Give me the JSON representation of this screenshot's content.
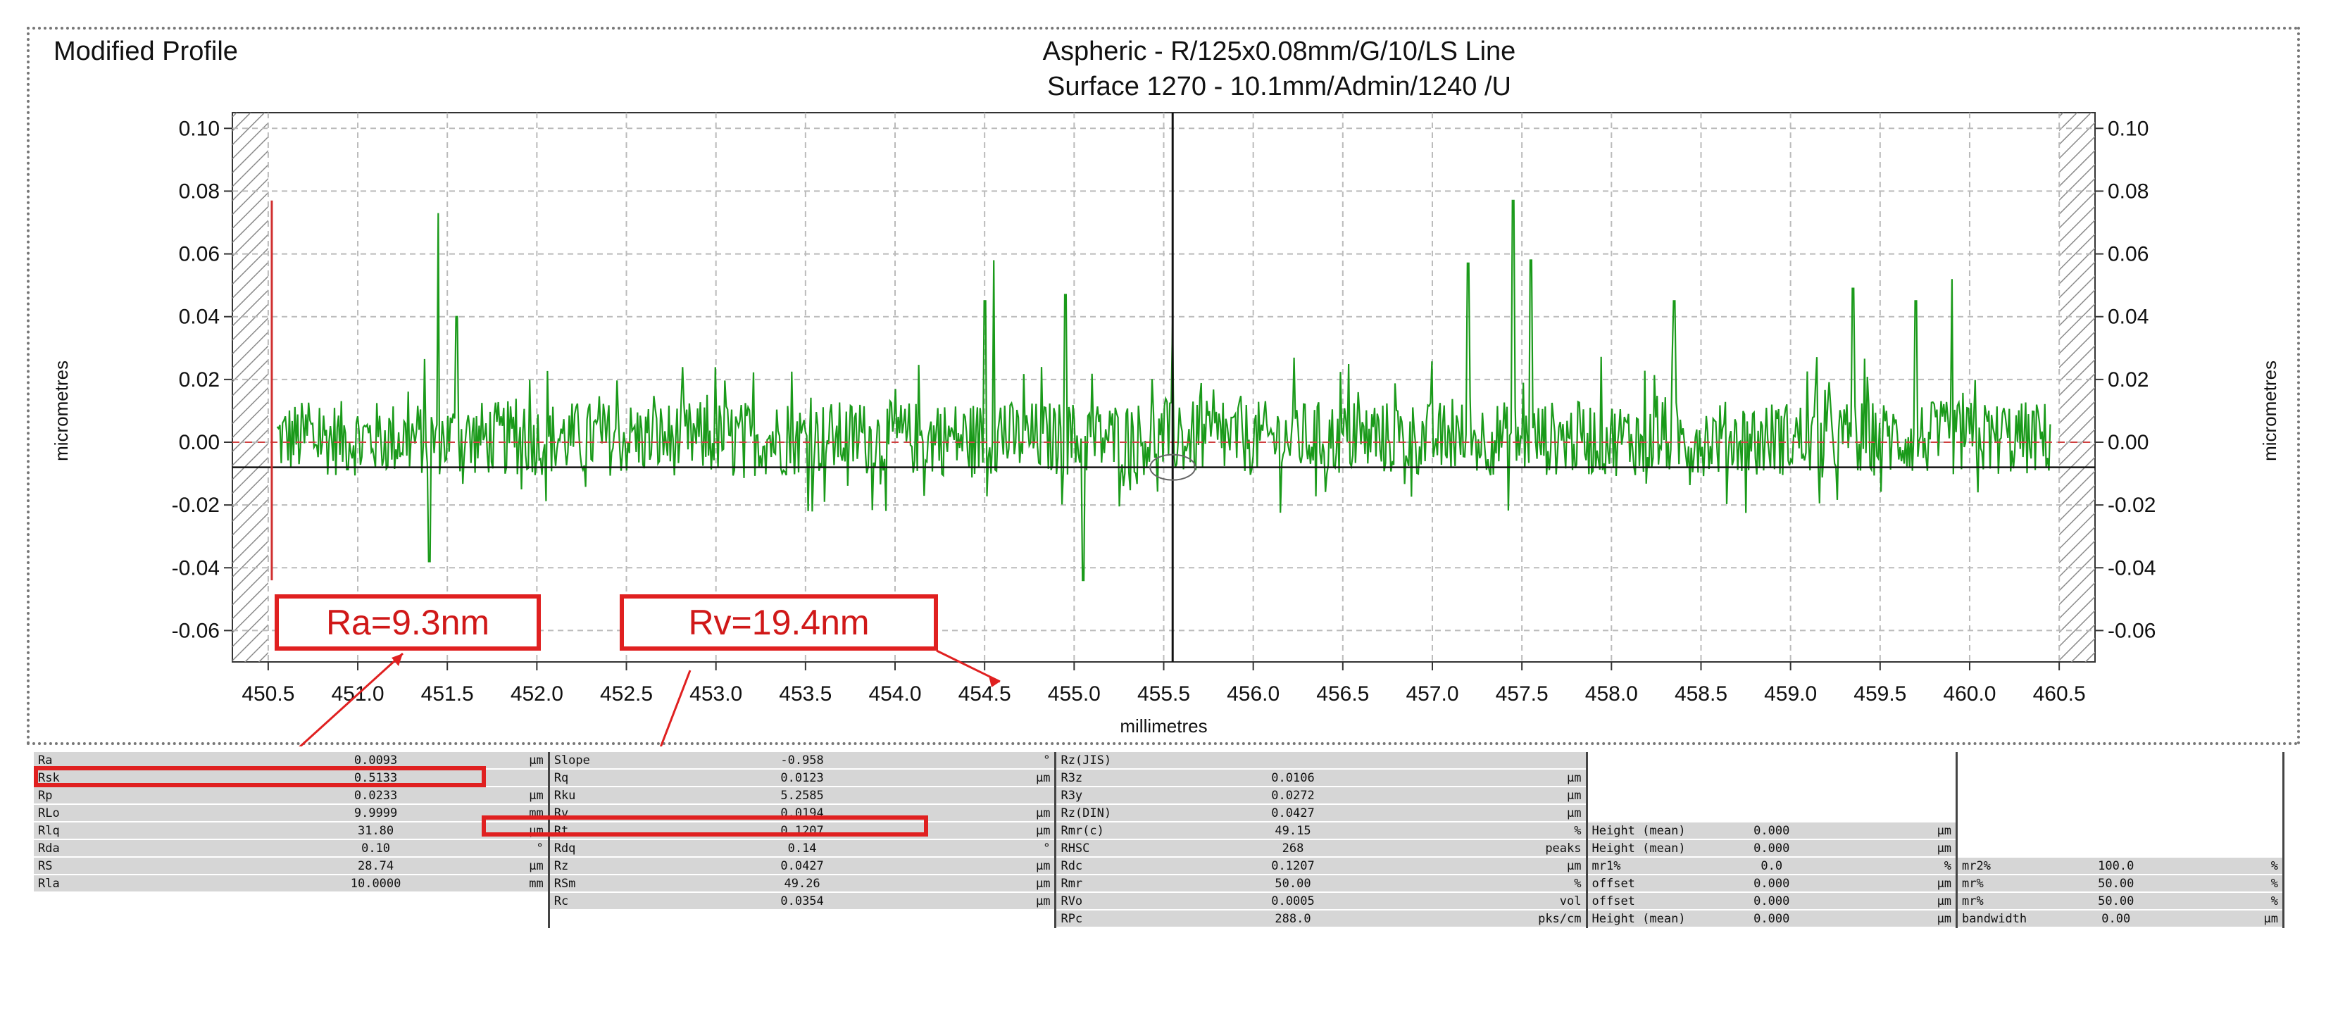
{
  "titles": {
    "left": "Modified Profile",
    "line1": "Aspheric - R/125x0.08mm/G/10/LS Line",
    "line2": "Surface 1270 - 10.1mm/Admin/1240 /U"
  },
  "annotations": {
    "ra": "Ra=9.3nm",
    "rv": "Rv=19.4nm"
  },
  "colors": {
    "trace": "#1a9a1a",
    "highlight": "#e02020",
    "hatch": "#8a8a8a",
    "cell": "#d6d6d6"
  },
  "chart_data": {
    "type": "line",
    "title": "Aspheric - R/125x0.08mm/G/10/LS Line",
    "subtitle": "Surface 1270 - 10.1mm/Admin/1240 /U",
    "xlabel": "millimetres",
    "ylabel": "micrometres",
    "xlim": [
      450.3,
      460.7
    ],
    "ylim": [
      -0.07,
      0.105
    ],
    "x_ticks": [
      450.5,
      451.0,
      451.5,
      452.0,
      452.5,
      453.0,
      453.5,
      454.0,
      454.5,
      455.0,
      455.5,
      456.0,
      456.5,
      457.0,
      457.5,
      458.0,
      458.5,
      459.0,
      459.5,
      460.0,
      460.5
    ],
    "x_tick_labels": [
      "450.5",
      "451.0",
      "451.5",
      "452.0",
      "452.5",
      "453.0",
      "453.5",
      "454.0",
      "454.5",
      "455.0",
      "455.5",
      "456.0",
      "456.5",
      "457.0",
      "457.5",
      "458.0",
      "458.5",
      "459.0",
      "459.5",
      "460.0",
      "460.5"
    ],
    "y_ticks": [
      0.1,
      0.08,
      0.06,
      0.04,
      0.02,
      0.0,
      -0.02,
      -0.04,
      -0.06
    ],
    "y_tick_labels": [
      "0.10",
      "0.08",
      "0.06",
      "0.04",
      "0.02",
      "0.00",
      "-0.02",
      "-0.04",
      "-0.06"
    ],
    "grid": true,
    "cursor_x": 455.55,
    "mean_line_y": -0.008,
    "start_marker": {
      "x": 450.52,
      "y_top": 0.077,
      "y_bottom": -0.044
    },
    "peaks": [
      {
        "x": 451.45,
        "y": 0.073
      },
      {
        "x": 451.55,
        "y": 0.04
      },
      {
        "x": 451.4,
        "y": -0.038
      },
      {
        "x": 454.55,
        "y": 0.058
      },
      {
        "x": 454.5,
        "y": 0.045
      },
      {
        "x": 454.95,
        "y": 0.047
      },
      {
        "x": 455.05,
        "y": -0.044
      },
      {
        "x": 457.45,
        "y": 0.077
      },
      {
        "x": 457.55,
        "y": 0.058
      },
      {
        "x": 457.2,
        "y": 0.057
      },
      {
        "x": 459.9,
        "y": 0.052
      },
      {
        "x": 459.7,
        "y": 0.045
      },
      {
        "x": 458.35,
        "y": 0.045
      },
      {
        "x": 459.35,
        "y": 0.049
      },
      {
        "x": 455.55,
        "y": 0.038
      }
    ],
    "noise_amplitude": 0.012,
    "sample_count": 1300
  },
  "stats": {
    "rows": [
      [
        [
          "Ra",
          "0.0093",
          "µm"
        ],
        [
          "Slope",
          "-0.958",
          "°"
        ],
        [
          "Rz(JIS)",
          "",
          ""
        ],
        [
          "",
          "",
          ""
        ],
        [
          "",
          "",
          ""
        ]
      ],
      [
        [
          "Rsk",
          "0.5133",
          ""
        ],
        [
          "Rq",
          "0.0123",
          "µm"
        ],
        [
          "R3z",
          "0.0106",
          "µm"
        ],
        [
          "",
          "",
          ""
        ],
        [
          "",
          "",
          ""
        ]
      ],
      [
        [
          "Rp",
          "0.0233",
          "µm"
        ],
        [
          "Rku",
          "5.2585",
          ""
        ],
        [
          "R3y",
          "0.0272",
          "µm"
        ],
        [
          "",
          "",
          ""
        ],
        [
          "",
          "",
          ""
        ]
      ],
      [
        [
          "RLo",
          "9.9999",
          "mm"
        ],
        [
          "Rv",
          "0.0194",
          "µm"
        ],
        [
          "Rz(DIN)",
          "0.0427",
          "µm"
        ],
        [
          "",
          "",
          ""
        ],
        [
          "",
          "",
          ""
        ]
      ],
      [
        [
          "Rlq",
          "31.80",
          "µm"
        ],
        [
          "Rt",
          "0.1207",
          "µm"
        ],
        [
          "Rmr(c)",
          "49.15",
          "%"
        ],
        [
          "Height (mean)",
          "0.000",
          "µm"
        ],
        [
          "",
          "",
          ""
        ]
      ],
      [
        [
          "Rda",
          "0.10",
          "°"
        ],
        [
          "Rdq",
          "0.14",
          "°"
        ],
        [
          "RHSC",
          "268",
          "peaks"
        ],
        [
          "Height (mean)",
          "0.000",
          "µm"
        ],
        [
          "",
          "",
          ""
        ]
      ],
      [
        [
          "RS",
          "28.74",
          "µm"
        ],
        [
          "Rz",
          "0.0427",
          "µm"
        ],
        [
          "Rdc",
          "0.1207",
          "µm"
        ],
        [
          "mr1%",
          "0.0",
          "%"
        ],
        [
          "mr2%",
          "100.0",
          "%"
        ]
      ],
      [
        [
          "Rla",
          "10.0000",
          "mm"
        ],
        [
          "RSm",
          "49.26",
          "µm"
        ],
        [
          "Rmr",
          "50.00",
          "%"
        ],
        [
          "offset",
          "0.000",
          "µm"
        ],
        [
          "mr%",
          "50.00",
          "%"
        ]
      ],
      [
        [
          "",
          "",
          ""
        ],
        [
          "Rc",
          "0.0354",
          "µm"
        ],
        [
          "RVo",
          "0.0005",
          "vol"
        ],
        [
          "offset",
          "0.000",
          "µm"
        ],
        [
          "mr%",
          "50.00",
          "%"
        ]
      ],
      [
        [
          "",
          "",
          ""
        ],
        [
          "",
          "",
          ""
        ],
        [
          "RPc",
          "288.0",
          "pks/cm"
        ],
        [
          "Height (mean)",
          "0.000",
          "µm"
        ],
        [
          "bandwidth",
          "0.00",
          "µm"
        ]
      ]
    ]
  }
}
